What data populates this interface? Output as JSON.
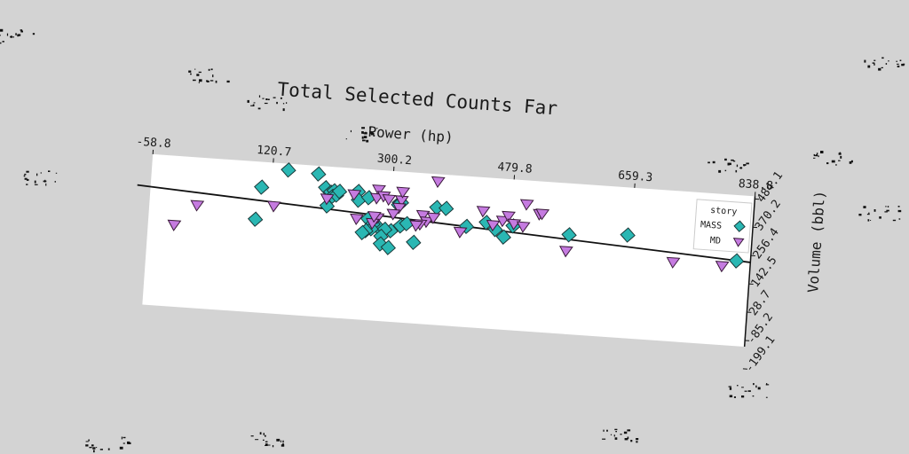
{
  "chart_data": {
    "type": "scatter",
    "title": "Total Selected Counts Far",
    "xlabel": "Power (hp)",
    "ylabel": "Volume (bbl)",
    "x_ticks": [
      "-58.8",
      "120.7",
      "300.2",
      "479.8",
      "659.3",
      "838.8"
    ],
    "y_ticks": [
      "-199.1",
      "-85.2",
      "28.7",
      "142.5",
      "256.4",
      "370.2",
      "484.1"
    ],
    "xlim": [
      -58.8,
      838.8
    ],
    "ylim": [
      -199.1,
      540
    ],
    "grid": false,
    "legend": {
      "title": "story",
      "placement": "top-right"
    },
    "reference_line": {
      "y_at_xmin": 384,
      "y_at_xmax": 215
    },
    "series": [
      {
        "name": "MASS",
        "marker": "diamond",
        "color": "#2ab7b3",
        "points": [
          [
            144,
            509
          ],
          [
            189,
            500
          ],
          [
            201,
            435
          ],
          [
            209,
            415
          ],
          [
            214,
            423
          ],
          [
            212,
            395
          ],
          [
            218,
            403
          ],
          [
            222,
            422
          ],
          [
            106,
            416
          ],
          [
            250,
            428
          ],
          [
            251,
            385
          ],
          [
            312,
            386
          ],
          [
            315,
            389
          ],
          [
            311,
            375
          ],
          [
            266,
            401
          ],
          [
            205,
            347
          ],
          [
            100,
            257
          ],
          [
            282,
            264
          ],
          [
            302,
            247
          ],
          [
            368,
            376
          ],
          [
            382,
            375
          ],
          [
            267,
            297
          ],
          [
            275,
            275
          ],
          [
            273,
            250
          ],
          [
            293,
            252
          ],
          [
            288,
            216
          ],
          [
            288,
            179
          ],
          [
            300,
            164
          ],
          [
            337,
            198
          ],
          [
            316,
            274
          ],
          [
            325,
            287
          ],
          [
            414,
            294
          ],
          [
            443,
            320
          ],
          [
            457,
            289
          ],
          [
            483,
            312
          ],
          [
            567,
            288
          ],
          [
            470,
            255
          ],
          [
            654,
            307
          ],
          [
            782,
            310
          ],
          [
            818,
            218
          ],
          [
            265,
            239
          ],
          [
            260,
            228
          ]
        ]
      },
      {
        "name": "MD",
        "marker": "triangle-down",
        "color": "#c57be0",
        "points": [
          [
            -20,
            200
          ],
          [
            12,
            304
          ],
          [
            126,
            326
          ],
          [
            204,
            380
          ],
          [
            244,
            410
          ],
          [
            280,
            442
          ],
          [
            278,
            400
          ],
          [
            288,
            412
          ],
          [
            296,
            398
          ],
          [
            315,
            397
          ],
          [
            312,
            360
          ],
          [
            316,
            439
          ],
          [
            367,
            502
          ],
          [
            348,
            332
          ],
          [
            354,
            302
          ],
          [
            364,
            324
          ],
          [
            345,
            287
          ],
          [
            304,
            328
          ],
          [
            281,
            304
          ],
          [
            339,
            280
          ],
          [
            437,
            373
          ],
          [
            467,
            332
          ],
          [
            475,
            357
          ],
          [
            501,
            421
          ],
          [
            521,
            377
          ],
          [
            525,
            380
          ],
          [
            484,
            321
          ],
          [
            453,
            308
          ],
          [
            498,
            311
          ],
          [
            405,
            263
          ],
          [
            564,
            206
          ],
          [
            724,
            188
          ],
          [
            797,
            186
          ],
          [
            274,
            276
          ],
          [
            276,
            310
          ],
          [
            250,
            292
          ]
        ]
      }
    ]
  }
}
